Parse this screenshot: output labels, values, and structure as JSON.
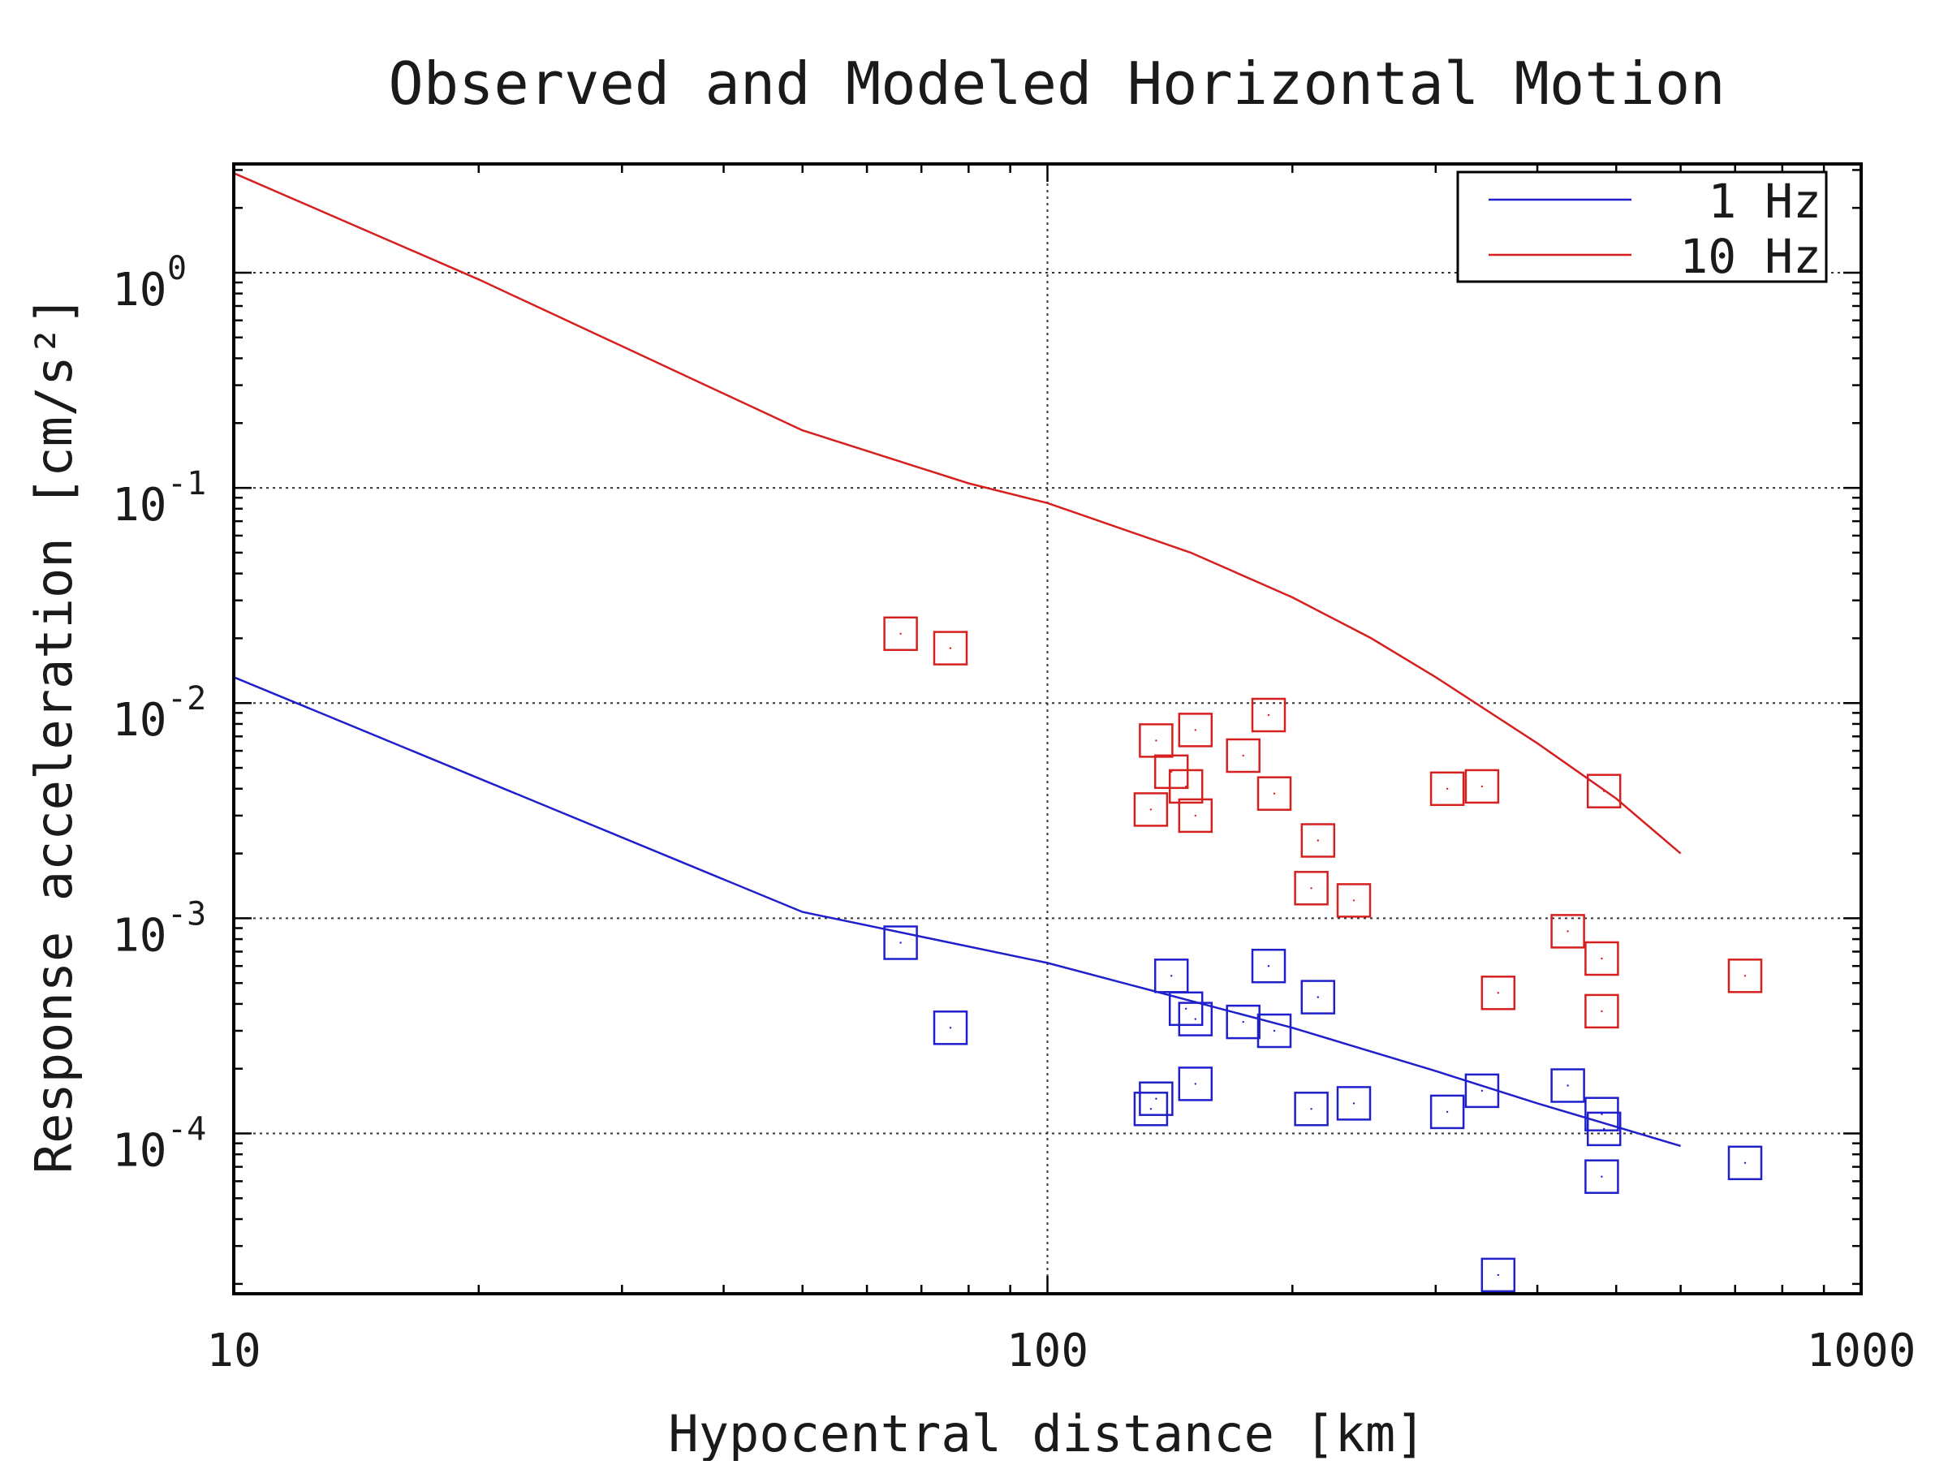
{
  "chart_data": {
    "type": "scatter",
    "title": "Observed and Modeled Horizontal Motion",
    "xlabel": "Hypocentral distance [km]",
    "ylabel": "Response acceleration [cm/s²]",
    "xscale": "log",
    "yscale": "log",
    "xlim": [
      10,
      1000
    ],
    "ylim": [
      1.8e-05,
      3.2
    ],
    "grid": true,
    "legend_position": "top-right",
    "x_ticks": [
      {
        "value": 10,
        "label": "10"
      },
      {
        "value": 100,
        "label": "100"
      },
      {
        "value": 1000,
        "label": "1000"
      }
    ],
    "y_ticks": [
      {
        "value": 1,
        "base": "10",
        "exp": "0"
      },
      {
        "value": 0.1,
        "base": "10",
        "exp": "-1"
      },
      {
        "value": 0.01,
        "base": "10",
        "exp": "-2"
      },
      {
        "value": 0.001,
        "base": "10",
        "exp": "-3"
      },
      {
        "value": 0.0001,
        "base": "10",
        "exp": "-4"
      }
    ],
    "series": [
      {
        "name": "1 Hz",
        "kind": "line",
        "color": "#1f1fcc",
        "x": [
          10,
          50,
          100,
          200,
          300,
          400,
          600
        ],
        "y": [
          0.0132,
          0.00107,
          0.00062,
          0.00031,
          0.000195,
          0.000138,
          8.75e-05
        ]
      },
      {
        "name": "10 Hz",
        "kind": "line",
        "color": "#d62020",
        "x": [
          10,
          20,
          50,
          80,
          100,
          150,
          200,
          250,
          300,
          400,
          500,
          600
        ],
        "y": [
          2.9,
          0.93,
          0.185,
          0.105,
          0.085,
          0.05,
          0.031,
          0.02,
          0.0132,
          0.0065,
          0.0036,
          0.002
        ]
      },
      {
        "kind": "markers",
        "color": "#1f1fcc",
        "points": [
          [
            66,
            0.00077
          ],
          [
            76,
            0.00031
          ],
          [
            134,
            0.00013
          ],
          [
            136,
            0.000145
          ],
          [
            142,
            0.00054
          ],
          [
            148,
            0.00038
          ],
          [
            152,
            0.00034
          ],
          [
            152,
            0.00017
          ],
          [
            174,
            0.00033
          ],
          [
            187,
            0.0006
          ],
          [
            190,
            0.0003
          ],
          [
            211,
            0.00013
          ],
          [
            215,
            0.00043
          ],
          [
            238,
            0.000138
          ],
          [
            310,
            0.000126
          ],
          [
            342,
            0.000158
          ],
          [
            358,
            2.2e-05
          ],
          [
            436,
            0.000167
          ],
          [
            483,
            0.000105
          ],
          [
            480,
            0.000123
          ],
          [
            480,
            6.3e-05
          ],
          [
            720,
            7.3e-05
          ]
        ]
      },
      {
        "kind": "markers",
        "color": "#d62020",
        "points": [
          [
            66,
            0.021
          ],
          [
            76,
            0.018
          ],
          [
            134,
            0.0032
          ],
          [
            136,
            0.0067
          ],
          [
            142,
            0.0048
          ],
          [
            148,
            0.0041
          ],
          [
            152,
            0.003
          ],
          [
            152,
            0.0075
          ],
          [
            174,
            0.0057
          ],
          [
            187,
            0.0088
          ],
          [
            190,
            0.0038
          ],
          [
            211,
            0.00138
          ],
          [
            215,
            0.0023
          ],
          [
            238,
            0.00121
          ],
          [
            310,
            0.004
          ],
          [
            342,
            0.0041
          ],
          [
            358,
            0.00045
          ],
          [
            436,
            0.00087
          ],
          [
            483,
            0.0039
          ],
          [
            480,
            0.00065
          ],
          [
            480,
            0.00037
          ],
          [
            720,
            0.00054
          ]
        ]
      }
    ]
  }
}
